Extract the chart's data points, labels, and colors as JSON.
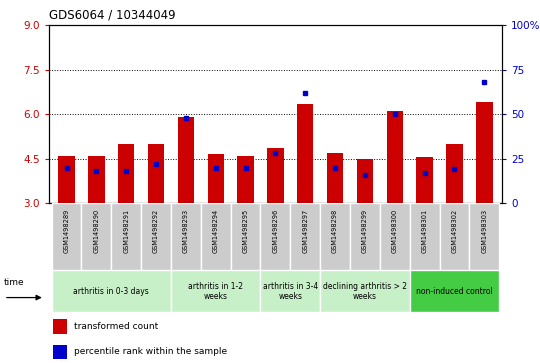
{
  "title": "GDS6064 / 10344049",
  "samples": [
    "GSM1498289",
    "GSM1498290",
    "GSM1498291",
    "GSM1498292",
    "GSM1498293",
    "GSM1498294",
    "GSM1498295",
    "GSM1498296",
    "GSM1498297",
    "GSM1498298",
    "GSM1498299",
    "GSM1498300",
    "GSM1498301",
    "GSM1498302",
    "GSM1498303"
  ],
  "transformed_count": [
    4.6,
    4.6,
    5.0,
    5.0,
    5.9,
    4.65,
    4.6,
    4.85,
    6.35,
    4.7,
    4.5,
    6.1,
    4.55,
    5.0,
    6.4
  ],
  "percentile_rank": [
    20,
    18,
    18,
    22,
    48,
    20,
    20,
    28,
    62,
    20,
    16,
    50,
    17,
    19,
    68
  ],
  "groups": [
    {
      "label": "arthritis in 0-3 days",
      "indices": [
        0,
        1,
        2,
        3
      ],
      "color": "#c8f0c8"
    },
    {
      "label": "arthritis in 1-2\nweeks",
      "indices": [
        4,
        5,
        6
      ],
      "color": "#c8f0c8"
    },
    {
      "label": "arthritis in 3-4\nweeks",
      "indices": [
        7,
        8
      ],
      "color": "#c8f0c8"
    },
    {
      "label": "declining arthritis > 2\nweeks",
      "indices": [
        9,
        10,
        11
      ],
      "color": "#c8f0c8"
    },
    {
      "label": "non-induced control",
      "indices": [
        12,
        13,
        14
      ],
      "color": "#44cc44"
    }
  ],
  "ylim_left": [
    3,
    9
  ],
  "ylim_right": [
    0,
    100
  ],
  "yticks_left": [
    3,
    4.5,
    6,
    7.5,
    9
  ],
  "yticks_right": [
    0,
    25,
    50,
    75,
    100
  ],
  "bar_color": "#cc0000",
  "dot_color": "#0000cc",
  "bar_width": 0.55,
  "legend_items": [
    {
      "label": "transformed count",
      "color": "#cc0000"
    },
    {
      "label": "percentile rank within the sample",
      "color": "#0000cc"
    }
  ],
  "ytick_color_left": "#cc0000",
  "ytick_color_right": "#0000cc",
  "sample_box_color": "#c8c8c8",
  "plot_bg": "#ffffff"
}
